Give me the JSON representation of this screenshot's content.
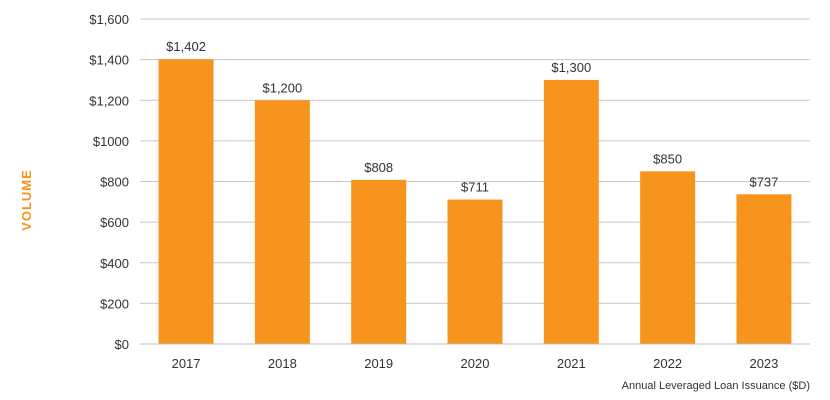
{
  "chart_data": {
    "type": "bar",
    "categories": [
      "2017",
      "2018",
      "2019",
      "2020",
      "2021",
      "2022",
      "2023"
    ],
    "values": [
      1402,
      1200,
      808,
      711,
      1300,
      850,
      737
    ],
    "value_labels": [
      "$1,402",
      "$1,200",
      "$808",
      "$711",
      "$1,300",
      "$850",
      "$737"
    ],
    "title": "",
    "xlabel": "Annual Leveraged Loan Issuance ($D)",
    "ylabel": "VOLUME",
    "ylim": [
      0,
      1600
    ],
    "y_ticks": [
      0,
      200,
      400,
      600,
      800,
      1000,
      1200,
      1400,
      1600
    ],
    "y_tick_labels": [
      "$0",
      "$200",
      "$400",
      "$600",
      "$800",
      "$1000",
      "$1,200",
      "$1,400",
      "$1,600"
    ],
    "grid": true,
    "legend": false,
    "colors": {
      "bar": "#f7941d",
      "grid": "#c8c8c8",
      "axis_title": "#f7941d",
      "text": "#333333"
    }
  }
}
